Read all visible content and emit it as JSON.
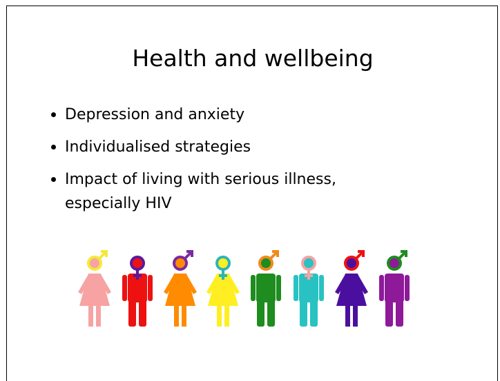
{
  "title": "Health and wellbeing",
  "bullets": [
    "Depression and anxiety",
    "Individualised strategies",
    "Impact of living with serious illness, especially HIV"
  ]
}
